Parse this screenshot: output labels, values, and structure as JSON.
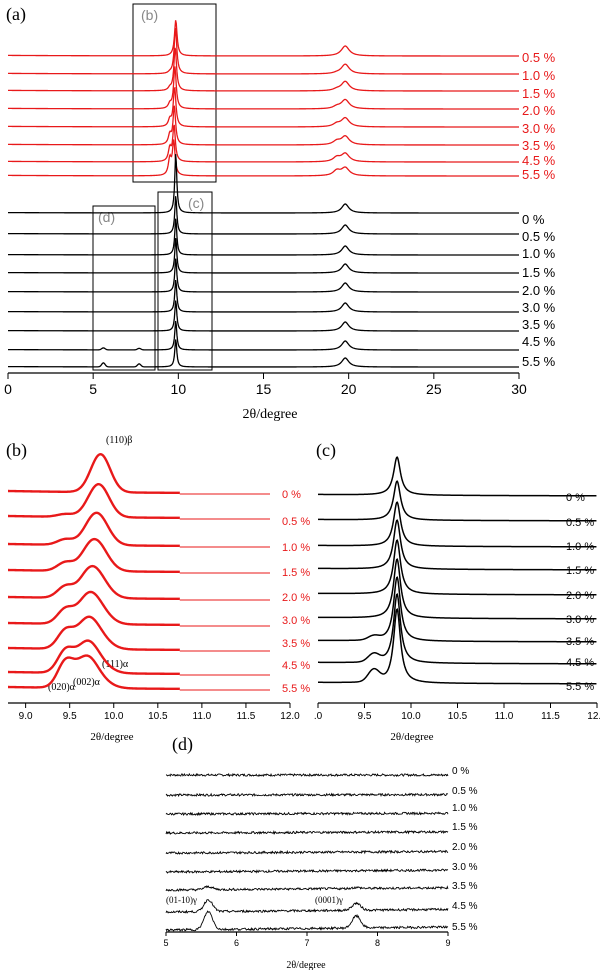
{
  "chart_data": [
    {
      "panel": "(a)",
      "type": "line",
      "xlabel": "2θ/degree",
      "xlim": [
        0,
        30
      ],
      "xticks": [
        0,
        5,
        10,
        15,
        20,
        25,
        30
      ],
      "series_red": [
        "0.5 %",
        "1.0 %",
        "1.5 %",
        "2.0 %",
        "3.0 %",
        "3.5 %",
        "4.5 %",
        "5.5 %"
      ],
      "series_black": [
        "0 %",
        "0.5 %",
        "1.0 %",
        "1.5 %",
        "2.0 %",
        "3.0 %",
        "3.5 %",
        "4.5 %",
        "5.5 %"
      ],
      "red_color": "#e8191a",
      "black_color": "#000000",
      "boxes": [
        {
          "label": "(b)",
          "x": [
            7.3,
            12.0
          ]
        },
        {
          "label": "(c)",
          "x": [
            8.8,
            12.0
          ]
        },
        {
          "label": "(d)",
          "x": [
            5.0,
            8.5
          ]
        }
      ],
      "peaks_deg": [
        9.85,
        19.8
      ]
    },
    {
      "panel": "(b)",
      "type": "line",
      "xlabel": "2θ/degree",
      "xlim": [
        8.8,
        12.0
      ],
      "xticks": [
        "9.0",
        "9.5",
        "10.0",
        "10.5",
        "11.0",
        "11.5",
        "12.0"
      ],
      "series": [
        "0 %",
        "0.5 %",
        "1.0 %",
        "1.5 %",
        "2.0 %",
        "3.0 %",
        "3.5 %",
        "4.5 %",
        "5.5 %"
      ],
      "color": "#e8191a",
      "annotations": [
        "(110)β",
        "(020)α",
        "(002)α",
        "(111)α"
      ]
    },
    {
      "panel": "(c)",
      "type": "line",
      "xlabel": "2θ/degree",
      "xlim": [
        9.0,
        12.0
      ],
      "xticks": [
        ".0",
        "9.5",
        "10.0",
        "10.5",
        "11.0",
        "11.5",
        "12.0"
      ],
      "series": [
        "0 %",
        "0.5 %",
        "1.0 %",
        "1.5 %",
        "2.0 %",
        "3.0 %",
        "3.5 %",
        "4.5 %",
        "5.5 %"
      ],
      "color": "#000000"
    },
    {
      "panel": "(d)",
      "type": "line",
      "xlabel": "2θ/degree",
      "xlim": [
        5,
        9
      ],
      "xticks": [
        5,
        6,
        7,
        8,
        9
      ],
      "series": [
        "0 %",
        "0.5 %",
        "1.0 %",
        "1.5 %",
        "2.0 %",
        "3.0 %",
        "3.5 %",
        "4.5 %",
        "5.5 %"
      ],
      "color": "#000000",
      "annotations": [
        "(01-10)γ",
        "(0001)γ"
      ]
    }
  ]
}
